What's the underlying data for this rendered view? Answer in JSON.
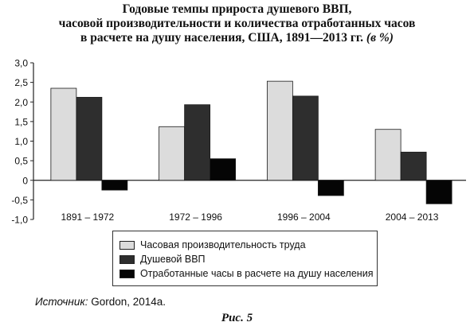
{
  "chart_data": {
    "type": "bar",
    "title_lines": [
      "Годовые темпы прироста душевого ВВП,",
      "часовой производительности и количества отработанных часов",
      "в расчете на душу населения, США, 1891—2013 гг."
    ],
    "title_unit": "(в %)",
    "categories": [
      "1891 – 1972",
      "1972 – 1996",
      "1996 – 2004",
      "2004 – 2013"
    ],
    "series": [
      {
        "name": "Часовая производительность труда",
        "color": "#dcdcdc",
        "values": [
          2.35,
          1.37,
          2.53,
          1.3
        ]
      },
      {
        "name": "Душевой ВВП",
        "color": "#2e2e2e",
        "values": [
          2.12,
          1.93,
          2.15,
          0.72
        ]
      },
      {
        "name": "Отработанные часы в расчете на душу населения",
        "color": "#050505",
        "values": [
          -0.25,
          0.55,
          -0.39,
          -0.6
        ]
      }
    ],
    "ylim": [
      -1.0,
      3.0
    ],
    "yticks": [
      -1.0,
      -0.5,
      0,
      0.5,
      1.0,
      1.5,
      2.0,
      2.5,
      3.0
    ],
    "ytick_labels": [
      "-1,0",
      "-0,5",
      "0",
      "0,5",
      "1,0",
      "1,5",
      "2,0",
      "2,5",
      "3,0"
    ],
    "xlabel": "",
    "ylabel": "",
    "legend_position": "bottom",
    "grid": false
  },
  "source": {
    "prefix": "Источник:",
    "text": " Gordon, 2014a."
  },
  "caption": "Рис. 5"
}
